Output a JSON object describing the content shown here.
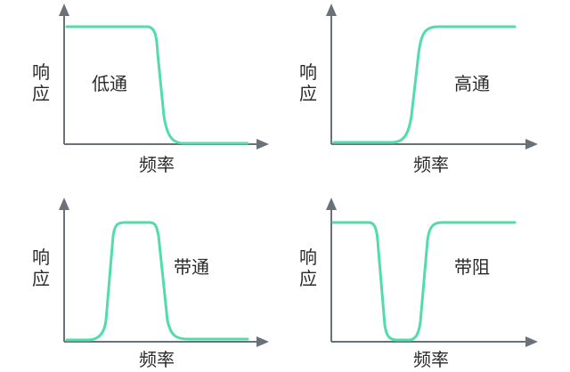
{
  "colors": {
    "curve": "#52dcaa",
    "axis": "#6b7178"
  },
  "panels": [
    {
      "type": "low-pass",
      "label": "低通",
      "ylabel_1": "响",
      "ylabel_2": "应",
      "xlabel": "频率"
    },
    {
      "type": "high-pass",
      "label": "高通",
      "ylabel_1": "响",
      "ylabel_2": "应",
      "xlabel": "频率"
    },
    {
      "type": "band-pass",
      "label": "带通",
      "ylabel_1": "响",
      "ylabel_2": "应",
      "xlabel": "频率"
    },
    {
      "type": "band-stop",
      "label": "带阻",
      "ylabel_1": "响",
      "ylabel_2": "应",
      "xlabel": "频率"
    }
  ]
}
